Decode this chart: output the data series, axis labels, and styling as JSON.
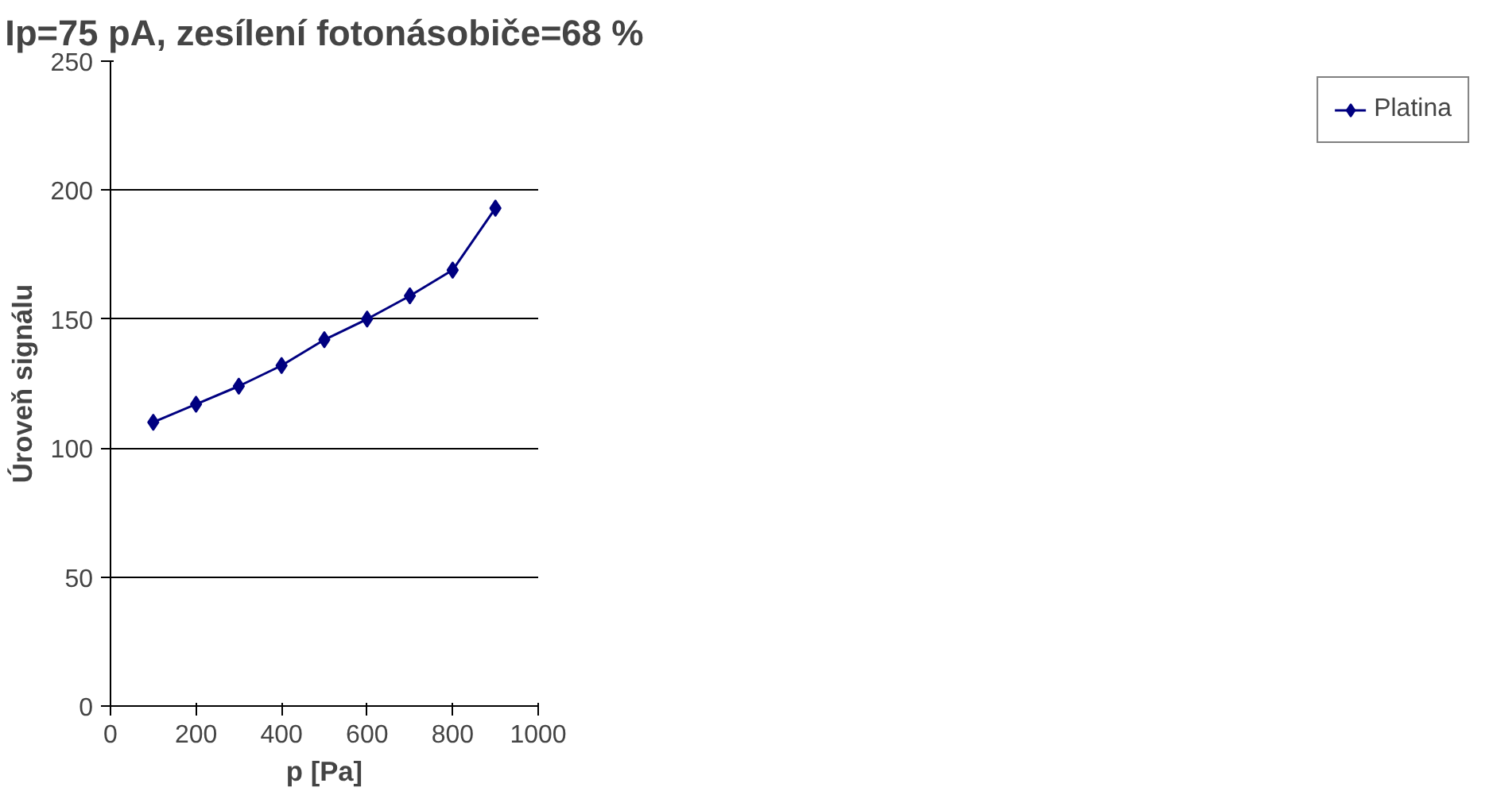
{
  "chart_data": {
    "type": "line",
    "title": "Ip=75 pA, zesílení fotonásobiče=68 %",
    "xlabel": "p [Pa]",
    "ylabel": "Úroveň signálu",
    "x": [
      100,
      200,
      300,
      400,
      500,
      600,
      700,
      800,
      900
    ],
    "series": [
      {
        "name": "Platina",
        "color": "#000080",
        "values": [
          110,
          117,
          124,
          132,
          142,
          150,
          159,
          169,
          193
        ]
      }
    ],
    "xlim": [
      0,
      1000
    ],
    "xticks": [
      0,
      200,
      400,
      600,
      800,
      1000
    ],
    "ylim": [
      0,
      250
    ],
    "yticks": [
      0,
      50,
      100,
      150,
      200,
      250
    ],
    "grid": "y",
    "legend": "right",
    "marker": "diamond",
    "line_style": "solid"
  }
}
